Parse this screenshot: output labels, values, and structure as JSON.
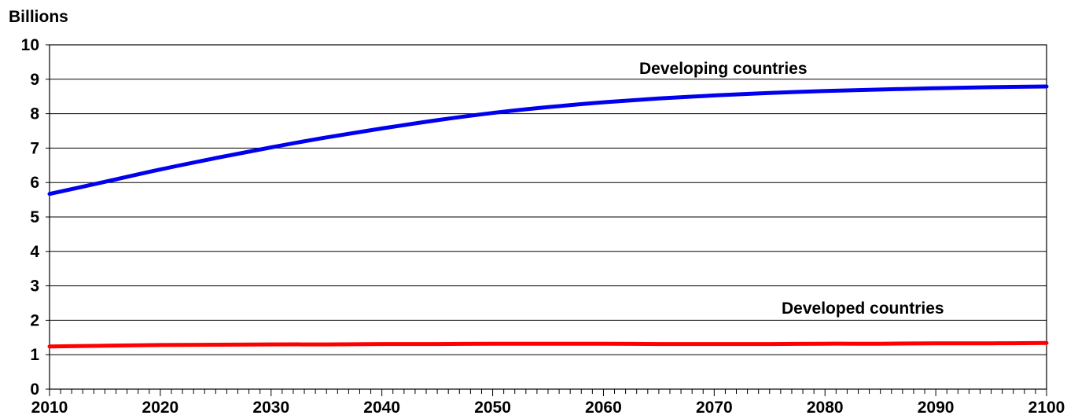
{
  "chart_data": {
    "type": "line",
    "ylabel": "Billions",
    "xlim": [
      2010,
      2100
    ],
    "ylim": [
      0,
      10
    ],
    "yticks": [
      "0",
      "1",
      "2",
      "3",
      "4",
      "5",
      "6",
      "7",
      "8",
      "9",
      "10"
    ],
    "xticks": [
      "2010",
      "2020",
      "2030",
      "2040",
      "2050",
      "2060",
      "2070",
      "2080",
      "2090",
      "2100"
    ],
    "grid": "horizontal",
    "x": [
      2010,
      2015,
      2020,
      2025,
      2030,
      2035,
      2040,
      2045,
      2050,
      2055,
      2060,
      2065,
      2070,
      2075,
      2080,
      2085,
      2090,
      2095,
      2100
    ],
    "series": [
      {
        "name": "Developing countries",
        "color": "#0000ee",
        "values": [
          5.67,
          6.02,
          6.38,
          6.71,
          7.02,
          7.31,
          7.57,
          7.81,
          8.02,
          8.19,
          8.33,
          8.44,
          8.53,
          8.6,
          8.66,
          8.7,
          8.74,
          8.77,
          8.79
        ]
      },
      {
        "name": "Developed countries",
        "color": "#ff0000",
        "values": [
          1.24,
          1.26,
          1.28,
          1.29,
          1.3,
          1.3,
          1.31,
          1.31,
          1.32,
          1.32,
          1.32,
          1.31,
          1.31,
          1.31,
          1.32,
          1.32,
          1.33,
          1.33,
          1.34
        ]
      }
    ]
  }
}
